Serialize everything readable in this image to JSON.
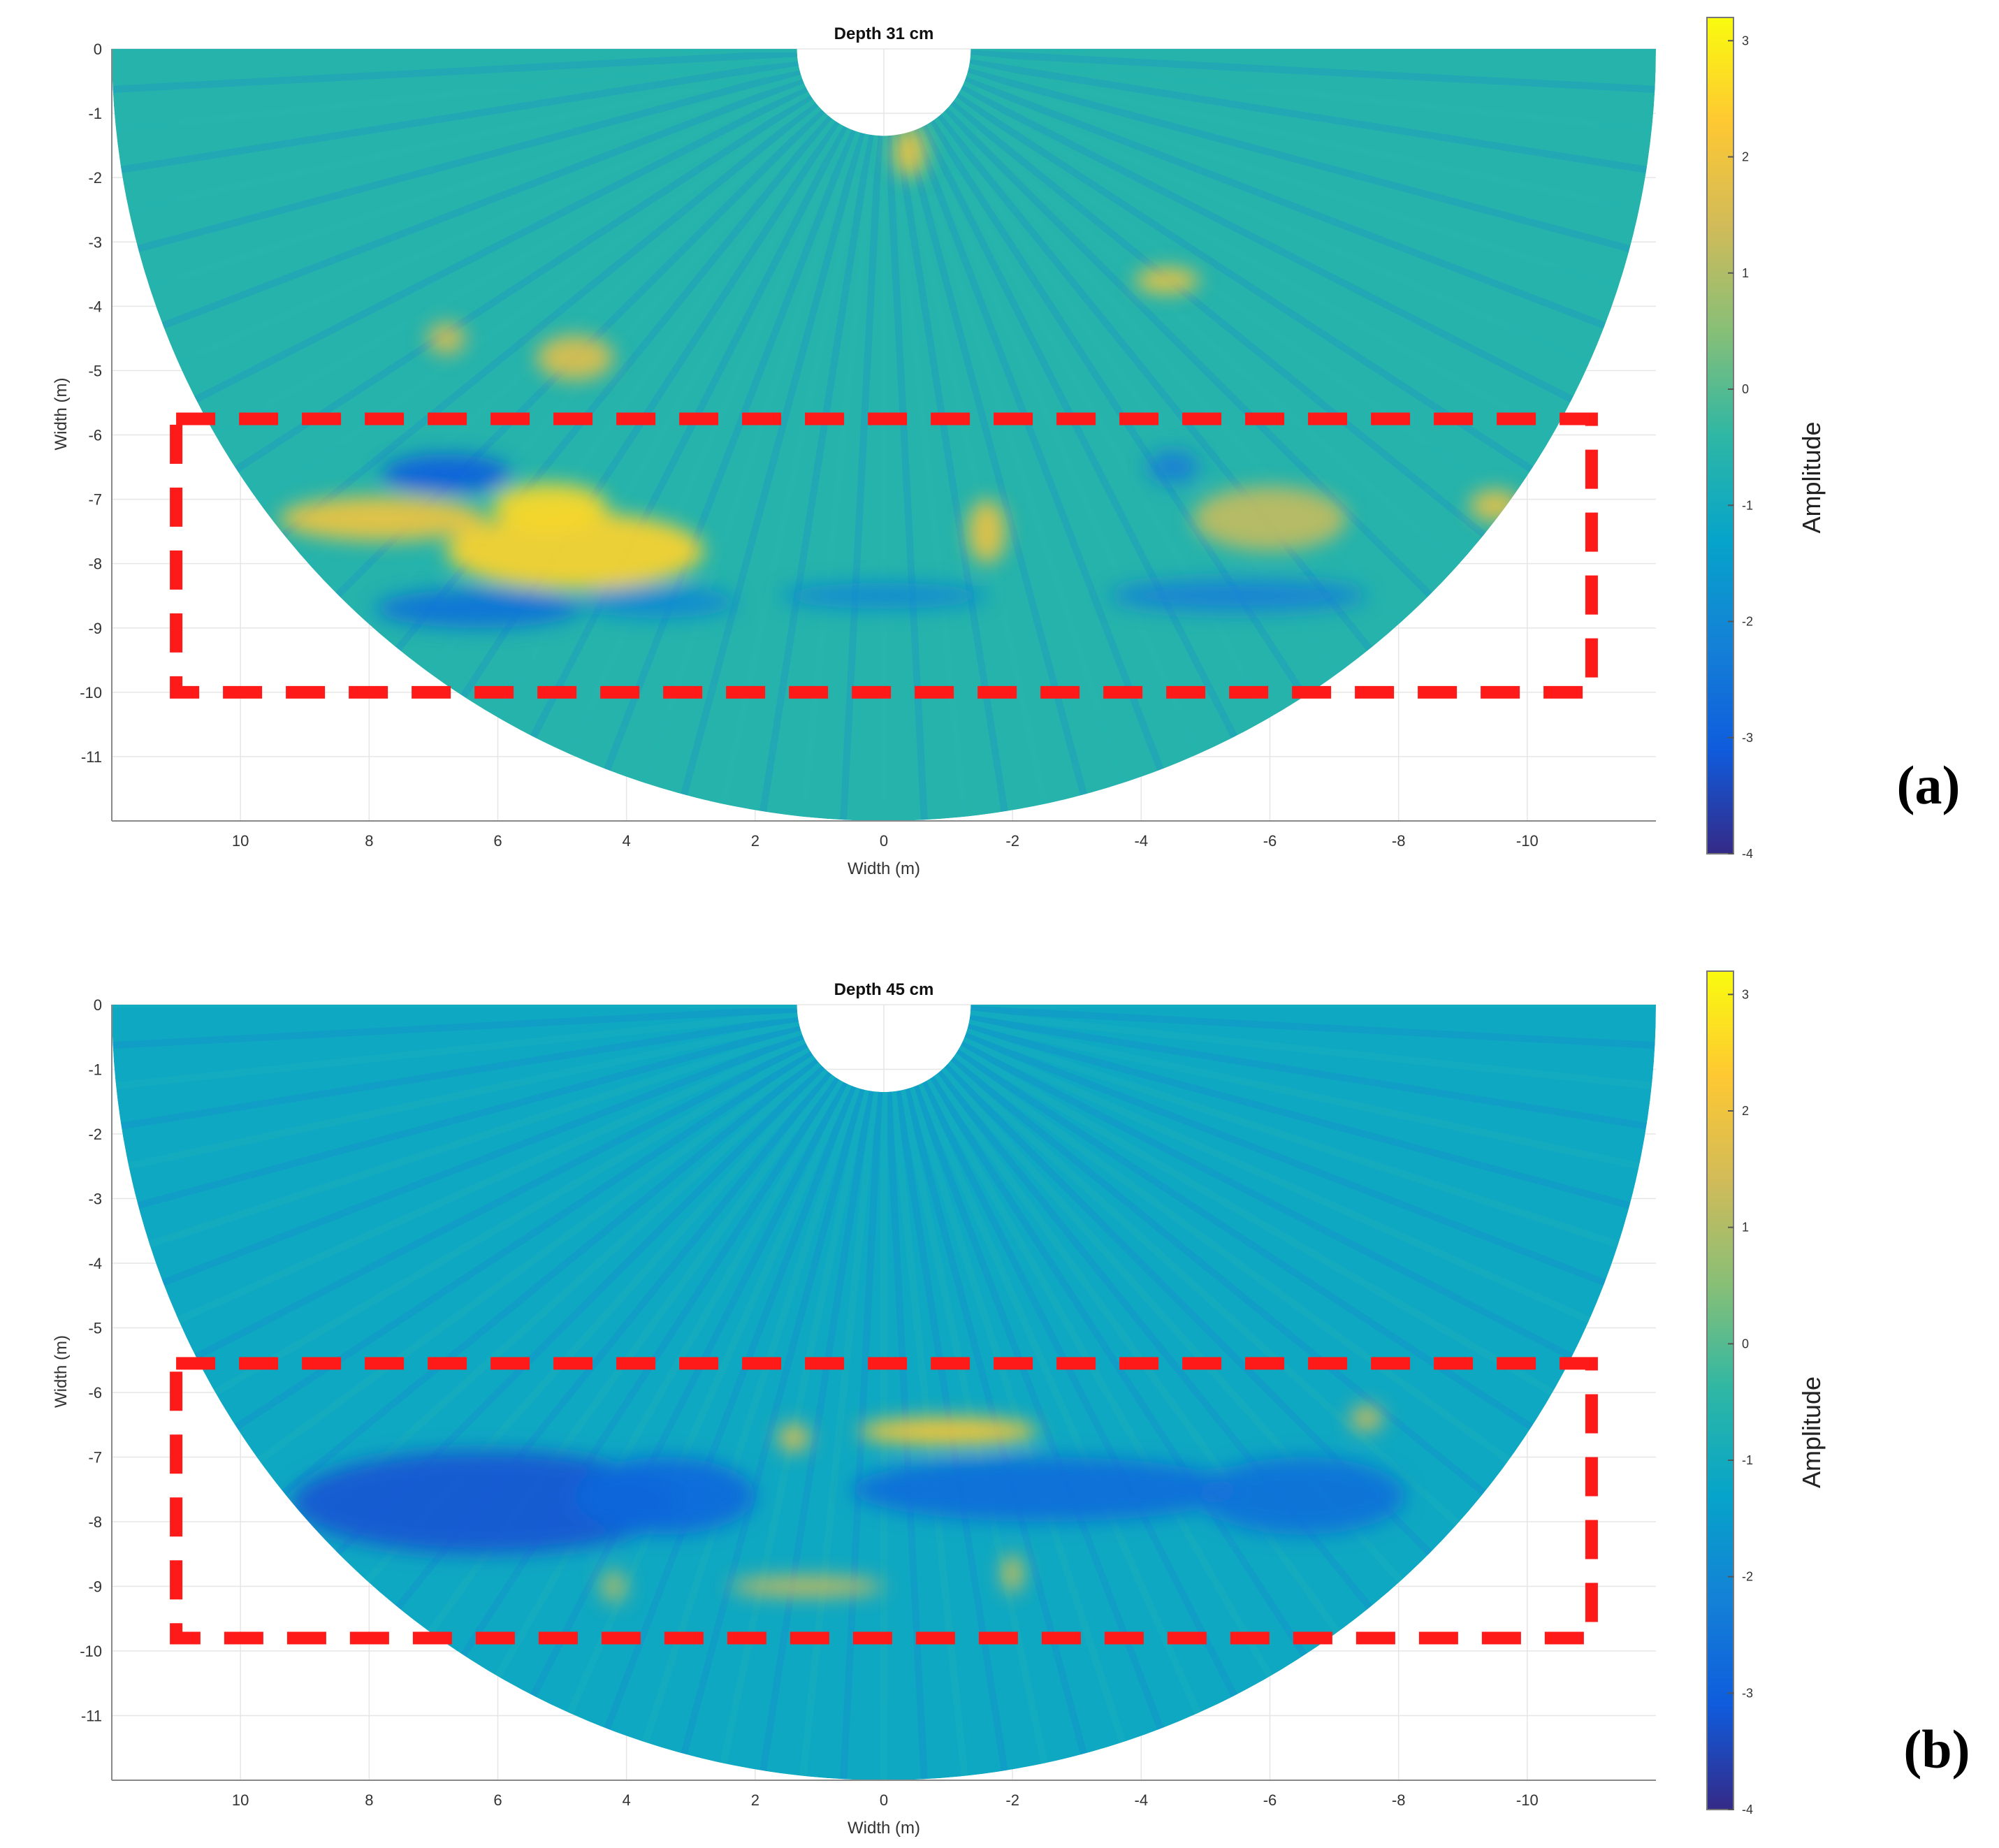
{
  "figure": {
    "panels": [
      "(a)",
      "(b)"
    ]
  },
  "chart_data": [
    {
      "type": "heatmap",
      "shape": "semicircular fan",
      "title": "Depth 31 cm",
      "panel_label": "(a)",
      "xlabel": "Width (m)",
      "ylabel": "Width (m)",
      "xlim": [
        12,
        -12
      ],
      "ylim": [
        -12,
        0
      ],
      "x_ticks": [
        10,
        8,
        6,
        4,
        2,
        0,
        -2,
        -4,
        -6,
        -8,
        -10
      ],
      "y_ticks": [
        0,
        -1,
        -2,
        -3,
        -4,
        -5,
        -6,
        -7,
        -8,
        -9,
        -10,
        -11
      ],
      "grid": true,
      "fan": {
        "center": [
          0,
          0
        ],
        "outer_radius": 12,
        "inner_radius": 1.35
      },
      "colorbar": {
        "label": "Amplitude",
        "colormap": "parula",
        "range": [
          -4,
          3.2
        ],
        "ticks": [
          3,
          2,
          1,
          0,
          -1,
          -2,
          -3,
          -4
        ],
        "stops": [
          "#352a87",
          "#0f5cdd",
          "#1481d6",
          "#06a4ca",
          "#2eb7a4",
          "#87bf77",
          "#d1bb59",
          "#fec832",
          "#f9fb0e"
        ]
      },
      "background_amplitude": -0.6,
      "highlight_box": {
        "x": [
          11,
          -11
        ],
        "y": [
          -5.75,
          -10
        ],
        "color": "#ff1a1a",
        "style": "dashed"
      },
      "features": [
        {
          "x": 4.8,
          "y": -7.8,
          "rx": 2.0,
          "ry": 0.6,
          "value": 2.5
        },
        {
          "x": 5.2,
          "y": -7.1,
          "rx": 0.9,
          "ry": 0.35,
          "value": 2.6
        },
        {
          "x": 7.8,
          "y": -7.3,
          "rx": 1.6,
          "ry": 0.35,
          "value": 2.0
        },
        {
          "x": 4.8,
          "y": -4.8,
          "rx": 0.6,
          "ry": 0.35,
          "value": 1.7
        },
        {
          "x": 6.8,
          "y": -4.5,
          "rx": 0.3,
          "ry": 0.25,
          "value": 1.5
        },
        {
          "x": -1.6,
          "y": -7.5,
          "rx": 0.3,
          "ry": 0.5,
          "value": 1.9
        },
        {
          "x": -6.0,
          "y": -7.3,
          "rx": 1.2,
          "ry": 0.5,
          "value": 1.2
        },
        {
          "x": -4.4,
          "y": -3.6,
          "rx": 0.5,
          "ry": 0.2,
          "value": 2.0
        },
        {
          "x": -9.5,
          "y": -7.1,
          "rx": 0.4,
          "ry": 0.25,
          "value": 1.8
        },
        {
          "x": -0.4,
          "y": -1.6,
          "rx": 0.25,
          "ry": 0.4,
          "value": 2.0
        },
        {
          "x": 6.8,
          "y": -6.6,
          "rx": 1.0,
          "ry": 0.3,
          "value": -3.0
        },
        {
          "x": 6.3,
          "y": -8.7,
          "rx": 1.6,
          "ry": 0.3,
          "value": -2.6
        },
        {
          "x": 3.5,
          "y": -8.6,
          "rx": 1.2,
          "ry": 0.25,
          "value": -2.0
        },
        {
          "x": 0,
          "y": -8.5,
          "rx": 1.6,
          "ry": 0.2,
          "value": -2.0
        },
        {
          "x": -5.5,
          "y": -8.5,
          "rx": 2.0,
          "ry": 0.25,
          "value": -2.2
        },
        {
          "x": -4.5,
          "y": -6.5,
          "rx": 0.4,
          "ry": 0.25,
          "value": -2.3
        }
      ]
    },
    {
      "type": "heatmap",
      "shape": "semicircular fan",
      "title": "Depth 45 cm",
      "panel_label": "(b)",
      "xlabel": "Width (m)",
      "ylabel": "Width (m)",
      "xlim": [
        12,
        -12
      ],
      "ylim": [
        -12,
        0
      ],
      "x_ticks": [
        10,
        8,
        6,
        4,
        2,
        0,
        -2,
        -4,
        -6,
        -8,
        -10
      ],
      "y_ticks": [
        0,
        -1,
        -2,
        -3,
        -4,
        -5,
        -6,
        -7,
        -8,
        -9,
        -10,
        -11
      ],
      "grid": true,
      "fan": {
        "center": [
          0,
          0
        ],
        "outer_radius": 12,
        "inner_radius": 1.35
      },
      "colorbar": {
        "label": "Amplitude",
        "colormap": "parula",
        "range": [
          -4,
          3.2
        ],
        "ticks": [
          3,
          2,
          1,
          0,
          -1,
          -2,
          -3,
          -4
        ],
        "stops": [
          "#352a87",
          "#0f5cdd",
          "#1481d6",
          "#06a4ca",
          "#2eb7a4",
          "#87bf77",
          "#d1bb59",
          "#fec832",
          "#f9fb0e"
        ]
      },
      "background_amplitude": -1.1,
      "highlight_box": {
        "x": [
          11,
          -11
        ],
        "y": [
          -5.55,
          -9.8
        ],
        "color": "#ff1a1a",
        "style": "dashed"
      },
      "features": [
        {
          "x": 6.2,
          "y": -7.7,
          "rx": 3.0,
          "ry": 0.8,
          "value": -3.2
        },
        {
          "x": 3.4,
          "y": -7.6,
          "rx": 1.4,
          "ry": 0.6,
          "value": -2.8
        },
        {
          "x": -2.5,
          "y": -7.5,
          "rx": 3.0,
          "ry": 0.5,
          "value": -2.7
        },
        {
          "x": -6.5,
          "y": -7.6,
          "rx": 1.6,
          "ry": 0.6,
          "value": -2.6
        },
        {
          "x": -1.0,
          "y": -6.6,
          "rx": 1.4,
          "ry": 0.22,
          "value": 2.3
        },
        {
          "x": 1.4,
          "y": -6.7,
          "rx": 0.25,
          "ry": 0.22,
          "value": 1.6
        },
        {
          "x": 1.2,
          "y": -9.0,
          "rx": 1.2,
          "ry": 0.15,
          "value": 1.5
        },
        {
          "x": -2.0,
          "y": -8.8,
          "rx": 0.15,
          "ry": 0.3,
          "value": 1.8
        },
        {
          "x": -7.5,
          "y": -6.4,
          "rx": 0.25,
          "ry": 0.2,
          "value": 1.5
        },
        {
          "x": 4.2,
          "y": -9.0,
          "rx": 0.2,
          "ry": 0.25,
          "value": 1.0
        }
      ]
    }
  ]
}
